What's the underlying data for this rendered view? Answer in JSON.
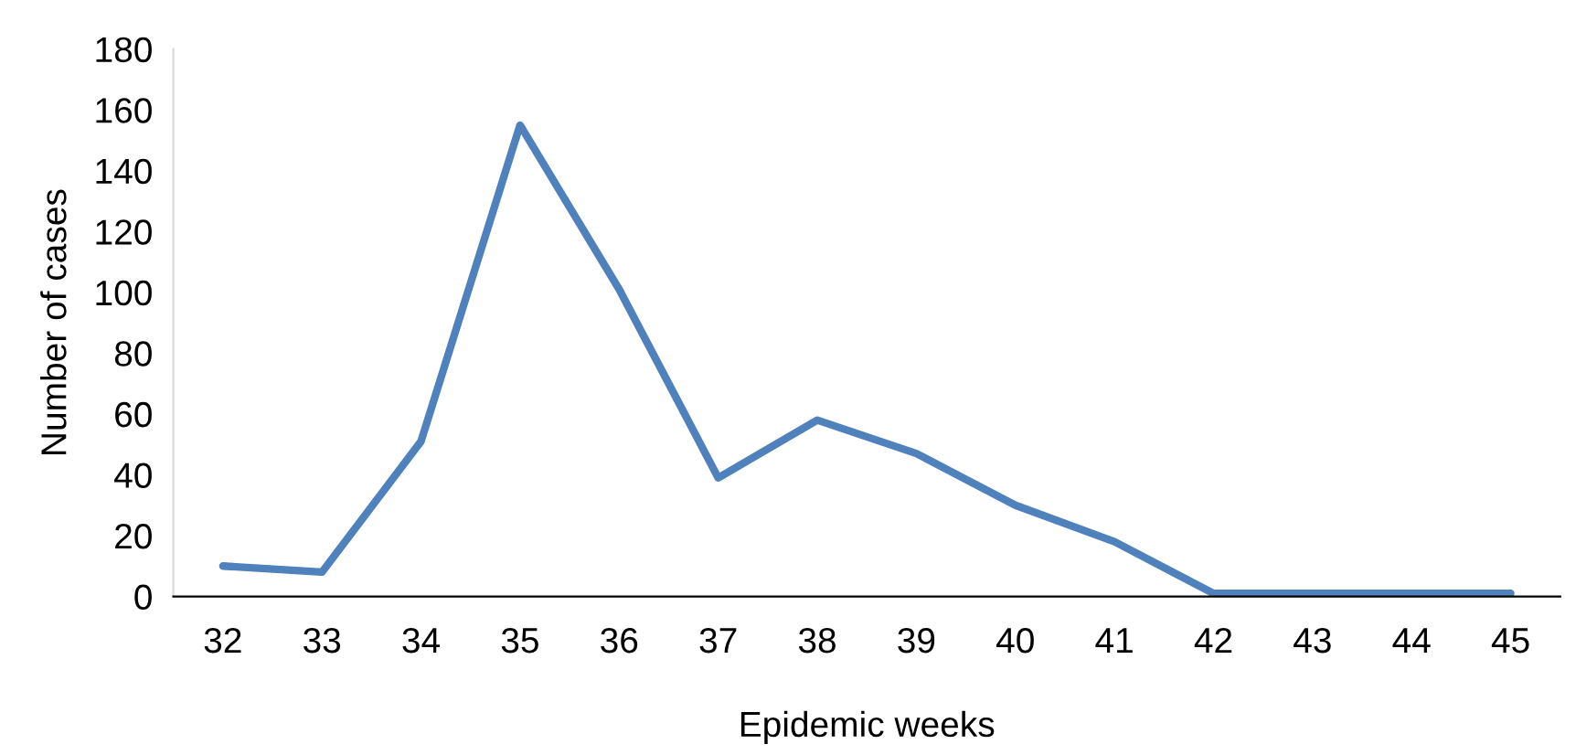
{
  "chart_data": {
    "type": "line",
    "xlabel": "Epidemic weeks",
    "ylabel": "Number of cases",
    "categories": [
      "32",
      "33",
      "34",
      "35",
      "36",
      "37",
      "38",
      "39",
      "40",
      "41",
      "42",
      "43",
      "44",
      "45"
    ],
    "series": [
      {
        "color": "#4f81bd",
        "values": [
          10,
          8,
          51,
          155,
          101,
          39,
          58,
          47,
          30,
          18,
          1,
          1,
          1,
          1
        ]
      }
    ],
    "ylim": [
      0,
      180
    ],
    "yticks": [
      0,
      20,
      40,
      60,
      80,
      100,
      120,
      140,
      160,
      180
    ],
    "grid": false,
    "marker": "none",
    "line_style": "solid"
  }
}
